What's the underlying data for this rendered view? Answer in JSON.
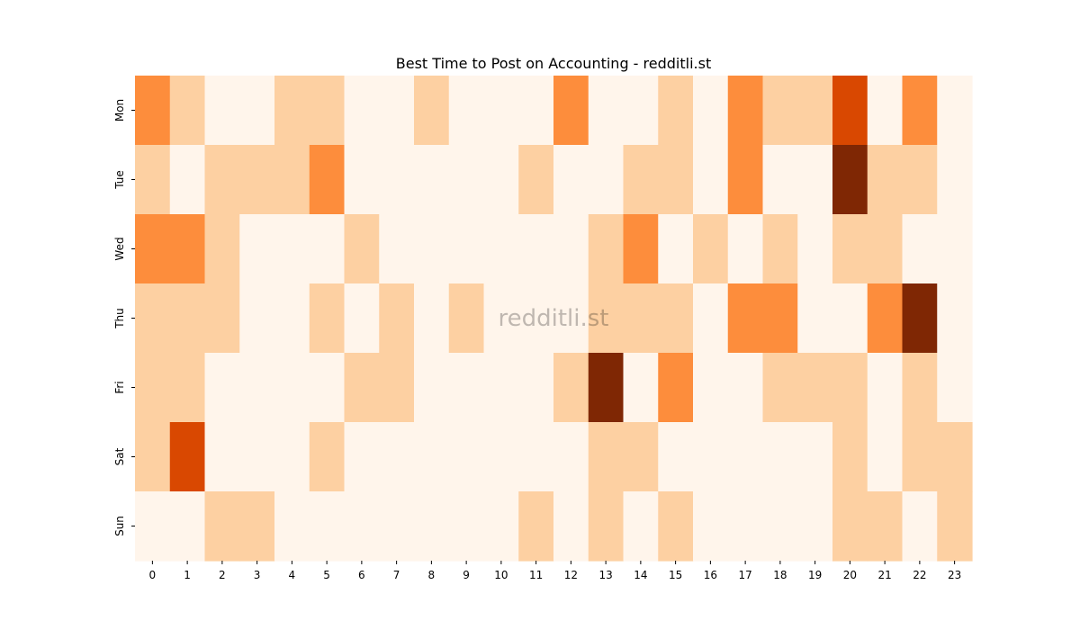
{
  "chart_data": {
    "type": "heatmap",
    "title": "Best Time to Post on Accounting - redditli.st",
    "watermark": "redditli.st",
    "xlabel": "",
    "ylabel": "",
    "x": [
      "0",
      "1",
      "2",
      "3",
      "4",
      "5",
      "6",
      "7",
      "8",
      "9",
      "10",
      "11",
      "12",
      "13",
      "14",
      "15",
      "16",
      "17",
      "18",
      "19",
      "20",
      "21",
      "22",
      "23"
    ],
    "y": [
      "Mon",
      "Tue",
      "Wed",
      "Thu",
      "Fri",
      "Sat",
      "Sun"
    ],
    "values": [
      [
        3,
        1,
        0,
        0,
        1,
        1,
        0,
        0,
        1,
        0,
        0,
        0,
        3,
        0,
        0,
        1,
        0,
        3,
        1,
        1,
        4,
        0,
        3,
        0
      ],
      [
        1,
        0,
        1,
        1,
        1,
        3,
        0,
        0,
        0,
        0,
        0,
        1,
        0,
        0,
        1,
        1,
        0,
        3,
        0,
        0,
        5,
        1,
        1,
        0
      ],
      [
        3,
        3,
        1,
        0,
        0,
        0,
        1,
        0,
        0,
        0,
        0,
        0,
        0,
        1,
        3,
        0,
        1,
        0,
        1,
        0,
        1,
        1,
        0,
        0
      ],
      [
        1,
        1,
        1,
        0,
        0,
        1,
        0,
        1,
        0,
        1,
        0,
        0,
        0,
        1,
        1,
        1,
        0,
        3,
        3,
        0,
        0,
        3,
        5,
        0
      ],
      [
        1,
        1,
        0,
        0,
        0,
        0,
        1,
        1,
        0,
        0,
        0,
        0,
        1,
        5,
        0,
        3,
        0,
        0,
        1,
        1,
        1,
        0,
        1,
        0
      ],
      [
        1,
        4,
        0,
        0,
        0,
        1,
        0,
        0,
        0,
        0,
        0,
        0,
        0,
        1,
        1,
        0,
        0,
        0,
        0,
        0,
        1,
        0,
        1,
        1
      ],
      [
        0,
        0,
        1,
        1,
        0,
        0,
        0,
        0,
        0,
        0,
        0,
        1,
        0,
        1,
        0,
        1,
        0,
        0,
        0,
        0,
        1,
        1,
        0,
        1
      ]
    ],
    "level_colors": [
      "#fff5eb",
      "#fdd0a2",
      "#fd9e54",
      "#fd8d3c",
      "#d94801",
      "#7f2704"
    ],
    "grid": false,
    "colorbar": false
  }
}
